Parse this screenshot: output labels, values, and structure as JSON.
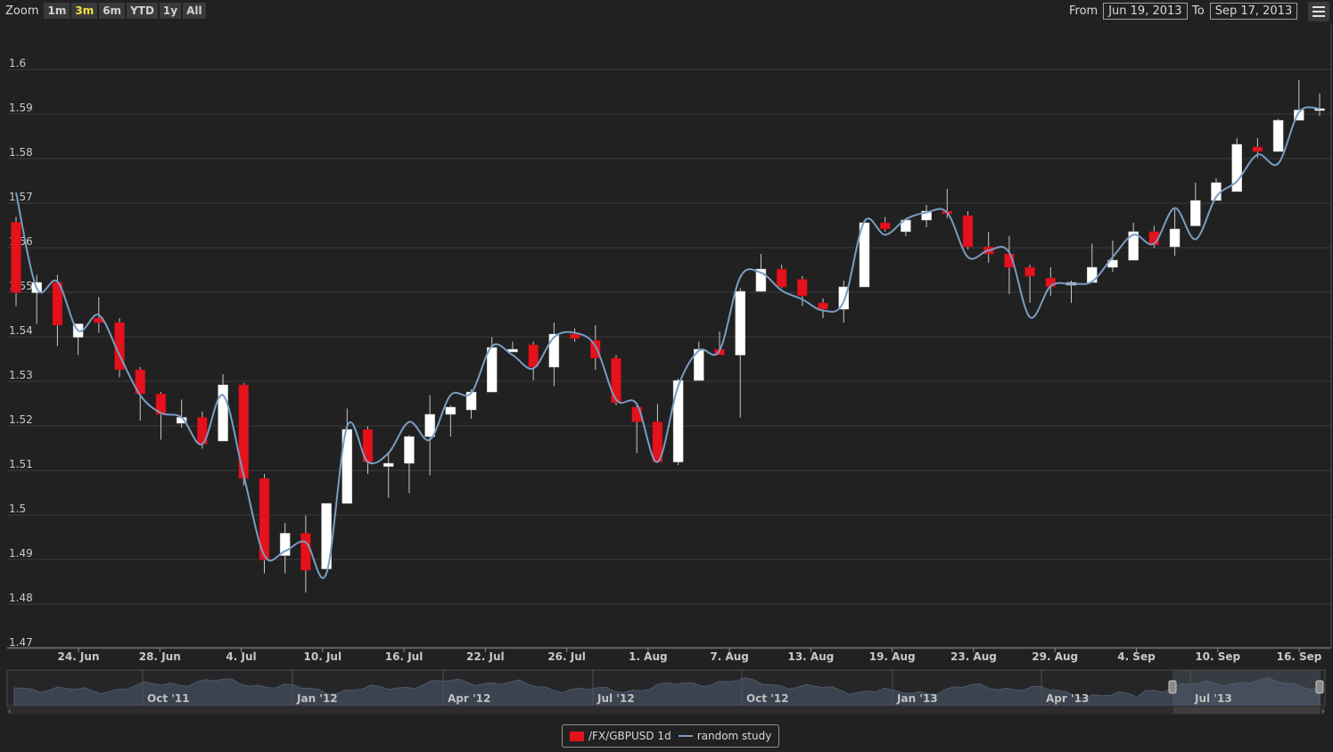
{
  "rangeSelector": {
    "zoom_label": "Zoom",
    "buttons": [
      "1m",
      "3m",
      "6m",
      "YTD",
      "1y",
      "All"
    ],
    "active": "3m",
    "from_label": "From",
    "from_value": "Jun 19, 2013",
    "to_label": "To",
    "to_value": "Sep 17, 2013"
  },
  "menu_icon": "hamburger-menu-icon",
  "legend": {
    "series1": "/FX/GBPUSD 1d",
    "series2": "random study"
  },
  "colors": {
    "background": "#212121",
    "down": "#e3121c",
    "up": "#ffffff",
    "study": "#7a9cc2",
    "grid": "#3a3a3a"
  },
  "chart_data": {
    "type": "candlestick",
    "ylim": [
      1.47,
      1.6
    ],
    "yticks": [
      "1.47",
      "1.48",
      "1.49",
      "1.5",
      "1.51",
      "1.52",
      "1.53",
      "1.54",
      "1.55",
      "1.56",
      "1.57",
      "1.58",
      "1.59",
      "1.6"
    ],
    "xticks": [
      "24. Jun",
      "28. Jun",
      "4. Jul",
      "10. Jul",
      "16. Jul",
      "22. Jul",
      "26. Jul",
      "1. Aug",
      "7. Aug",
      "13. Aug",
      "19. Aug",
      "23. Aug",
      "29. Aug",
      "4. Sep",
      "10. Sep",
      "16. Sep"
    ],
    "navigator_labels": [
      "Oct '11",
      "Jan '12",
      "Apr '12",
      "Jul '12",
      "Oct '12",
      "Jan '13",
      "Apr '13",
      "Jul '13"
    ],
    "candles": [
      {
        "o": 1.5643,
        "h": 1.5655,
        "l": 1.5455,
        "c": 1.5485
      },
      {
        "o": 1.5485,
        "h": 1.5525,
        "l": 1.5415,
        "c": 1.5508
      },
      {
        "o": 1.5508,
        "h": 1.5525,
        "l": 1.5365,
        "c": 1.5412
      },
      {
        "o": 1.5385,
        "h": 1.5415,
        "l": 1.5345,
        "c": 1.5415
      },
      {
        "o": 1.5428,
        "h": 1.5475,
        "l": 1.5395,
        "c": 1.5418
      },
      {
        "o": 1.5418,
        "h": 1.5428,
        "l": 1.5295,
        "c": 1.5312
      },
      {
        "o": 1.5312,
        "h": 1.5318,
        "l": 1.5198,
        "c": 1.5258
      },
      {
        "o": 1.5258,
        "h": 1.5262,
        "l": 1.5155,
        "c": 1.5212
      },
      {
        "o": 1.5192,
        "h": 1.5245,
        "l": 1.5182,
        "c": 1.5205
      },
      {
        "o": 1.5205,
        "h": 1.5218,
        "l": 1.5135,
        "c": 1.5145
      },
      {
        "o": 1.5152,
        "h": 1.5302,
        "l": 1.5152,
        "c": 1.5278
      },
      {
        "o": 1.5278,
        "h": 1.5282,
        "l": 1.5052,
        "c": 1.5068
      },
      {
        "o": 1.5068,
        "h": 1.5078,
        "l": 1.4855,
        "c": 1.4885
      },
      {
        "o": 1.4895,
        "h": 1.4968,
        "l": 1.4855,
        "c": 1.4945
      },
      {
        "o": 1.4945,
        "h": 1.4985,
        "l": 1.4812,
        "c": 1.4862
      },
      {
        "o": 1.4865,
        "h": 1.5012,
        "l": 1.4865,
        "c": 1.5012
      },
      {
        "o": 1.5012,
        "h": 1.5225,
        "l": 1.5012,
        "c": 1.5178
      },
      {
        "o": 1.5178,
        "h": 1.5185,
        "l": 1.5078,
        "c": 1.5105
      },
      {
        "o": 1.5095,
        "h": 1.5128,
        "l": 1.5025,
        "c": 1.5102
      },
      {
        "o": 1.5102,
        "h": 1.5165,
        "l": 1.5035,
        "c": 1.5162
      },
      {
        "o": 1.5162,
        "h": 1.5255,
        "l": 1.5075,
        "c": 1.5212
      },
      {
        "o": 1.5212,
        "h": 1.5232,
        "l": 1.5162,
        "c": 1.5228
      },
      {
        "o": 1.5222,
        "h": 1.5268,
        "l": 1.5202,
        "c": 1.5262
      },
      {
        "o": 1.5262,
        "h": 1.5385,
        "l": 1.5262,
        "c": 1.5362
      },
      {
        "o": 1.5352,
        "h": 1.5375,
        "l": 1.5352,
        "c": 1.5358
      },
      {
        "o": 1.5368,
        "h": 1.5375,
        "l": 1.5288,
        "c": 1.5318
      },
      {
        "o": 1.5318,
        "h": 1.5418,
        "l": 1.5275,
        "c": 1.5392
      },
      {
        "o": 1.5392,
        "h": 1.5405,
        "l": 1.5375,
        "c": 1.5382
      },
      {
        "o": 1.5378,
        "h": 1.5412,
        "l": 1.5312,
        "c": 1.5338
      },
      {
        "o": 1.5338,
        "h": 1.5345,
        "l": 1.5232,
        "c": 1.5238
      },
      {
        "o": 1.5228,
        "h": 1.5238,
        "l": 1.5125,
        "c": 1.5195
      },
      {
        "o": 1.5195,
        "h": 1.5235,
        "l": 1.5105,
        "c": 1.5105
      },
      {
        "o": 1.5105,
        "h": 1.5292,
        "l": 1.5098,
        "c": 1.5288
      },
      {
        "o": 1.5288,
        "h": 1.5375,
        "l": 1.5288,
        "c": 1.5358
      },
      {
        "o": 1.5358,
        "h": 1.5398,
        "l": 1.5345,
        "c": 1.5345
      },
      {
        "o": 1.5345,
        "h": 1.5495,
        "l": 1.5205,
        "c": 1.5488
      },
      {
        "o": 1.5488,
        "h": 1.5572,
        "l": 1.5488,
        "c": 1.5538
      },
      {
        "o": 1.5538,
        "h": 1.5548,
        "l": 1.5495,
        "c": 1.5498
      },
      {
        "o": 1.5515,
        "h": 1.5522,
        "l": 1.5455,
        "c": 1.5478
      },
      {
        "o": 1.5462,
        "h": 1.5472,
        "l": 1.5428,
        "c": 1.5448
      },
      {
        "o": 1.5448,
        "h": 1.5512,
        "l": 1.5418,
        "c": 1.5498
      },
      {
        "o": 1.5498,
        "h": 1.5648,
        "l": 1.5498,
        "c": 1.5642
      },
      {
        "o": 1.5642,
        "h": 1.5655,
        "l": 1.5622,
        "c": 1.5628
      },
      {
        "o": 1.5622,
        "h": 1.5652,
        "l": 1.5612,
        "c": 1.5648
      },
      {
        "o": 1.5648,
        "h": 1.5682,
        "l": 1.5632,
        "c": 1.5668
      },
      {
        "o": 1.5668,
        "h": 1.5718,
        "l": 1.5652,
        "c": 1.5662
      },
      {
        "o": 1.5658,
        "h": 1.5668,
        "l": 1.5582,
        "c": 1.5588
      },
      {
        "o": 1.5588,
        "h": 1.5622,
        "l": 1.5552,
        "c": 1.5572
      },
      {
        "o": 1.5572,
        "h": 1.5612,
        "l": 1.5482,
        "c": 1.5542
      },
      {
        "o": 1.5542,
        "h": 1.5548,
        "l": 1.5462,
        "c": 1.5522
      },
      {
        "o": 1.5518,
        "h": 1.5542,
        "l": 1.5478,
        "c": 1.5498
      },
      {
        "o": 1.5502,
        "h": 1.5512,
        "l": 1.5462,
        "c": 1.5508
      },
      {
        "o": 1.5508,
        "h": 1.5595,
        "l": 1.5508,
        "c": 1.5542
      },
      {
        "o": 1.5542,
        "h": 1.5602,
        "l": 1.5532,
        "c": 1.5558
      },
      {
        "o": 1.5558,
        "h": 1.5642,
        "l": 1.5558,
        "c": 1.5622
      },
      {
        "o": 1.5622,
        "h": 1.5635,
        "l": 1.5585,
        "c": 1.5592
      },
      {
        "o": 1.5588,
        "h": 1.5672,
        "l": 1.5568,
        "c": 1.5628
      },
      {
        "o": 1.5635,
        "h": 1.5732,
        "l": 1.5635,
        "c": 1.5692
      },
      {
        "o": 1.5692,
        "h": 1.5742,
        "l": 1.5692,
        "c": 1.5732
      },
      {
        "o": 1.5712,
        "h": 1.5832,
        "l": 1.5712,
        "c": 1.5818
      },
      {
        "o": 1.5812,
        "h": 1.5832,
        "l": 1.5788,
        "c": 1.5802
      },
      {
        "o": 1.5802,
        "h": 1.5875,
        "l": 1.5802,
        "c": 1.5872
      },
      {
        "o": 1.5872,
        "h": 1.5962,
        "l": 1.5872,
        "c": 1.5895
      },
      {
        "o": 1.5895,
        "h": 1.5932,
        "l": 1.5882,
        "c": 1.5898
      }
    ],
    "study": [
      1.571,
      1.5495,
      1.551,
      1.54,
      1.5435,
      1.5345,
      1.5255,
      1.5215,
      1.5205,
      1.5145,
      1.5255,
      1.5075,
      1.4895,
      1.4905,
      1.4925,
      1.4855,
      1.5185,
      1.5105,
      1.5125,
      1.5195,
      1.5155,
      1.5255,
      1.526,
      1.5365,
      1.5345,
      1.5315,
      1.5385,
      1.5395,
      1.5365,
      1.5245,
      1.5235,
      1.5105,
      1.5275,
      1.5355,
      1.5355,
      1.552,
      1.553,
      1.549,
      1.547,
      1.5445,
      1.5465,
      1.5645,
      1.5615,
      1.565,
      1.5665,
      1.5665,
      1.5565,
      1.558,
      1.5575,
      1.543,
      1.55,
      1.5505,
      1.551,
      1.5565,
      1.5615,
      1.5595,
      1.5675,
      1.5605,
      1.57,
      1.5735,
      1.5795,
      1.5775,
      1.589,
      1.5898
    ]
  }
}
